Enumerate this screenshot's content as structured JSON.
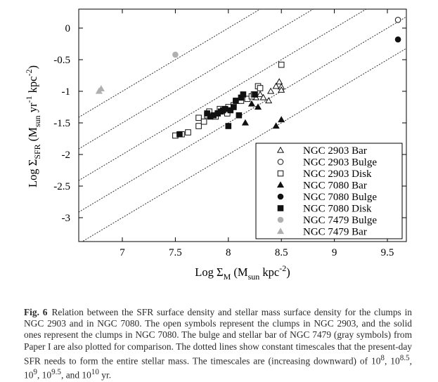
{
  "chart_data": {
    "type": "scatter",
    "xlabel": "Log Σ_M (M_sun kpc^-2)",
    "ylabel": "Log Σ_SFR (M_sun yr^-1 kpc^-2)",
    "xlim": [
      6.55,
      9.7
    ],
    "ylim": [
      -3.4,
      0.3
    ],
    "x_ticks": [
      7,
      7.5,
      8,
      8.5,
      9,
      9.5
    ],
    "x_tick_labels": [
      "7",
      "7.5",
      "8",
      "8.5",
      "9",
      "9.5"
    ],
    "y_ticks": [
      0,
      -0.5,
      -1,
      -1.5,
      -2,
      -2.5,
      -3
    ],
    "y_tick_labels": [
      "0",
      "-0.5",
      "-1",
      "-1.5",
      "-2",
      "-2.5",
      "-3"
    ],
    "legend_position": "bottom-right",
    "grid": false,
    "reference_lines": {
      "style": "dotted",
      "slope": 1,
      "log_timescales_yr": [
        8,
        8.5,
        9,
        9.5,
        10
      ]
    },
    "series": [
      {
        "name": "NGC 2903 Bar",
        "marker": "triangle",
        "filled": false,
        "color": "#111111",
        "points": [
          [
            8.26,
            -1.1
          ],
          [
            8.3,
            -1.05
          ],
          [
            8.33,
            -1.1
          ],
          [
            8.38,
            -1.15
          ],
          [
            8.4,
            -1.0
          ],
          [
            8.45,
            -0.92
          ],
          [
            8.48,
            -0.85
          ],
          [
            8.5,
            -0.93
          ],
          [
            8.5,
            -0.98
          ]
        ]
      },
      {
        "name": "NGC 2903 Bulge",
        "marker": "circle",
        "filled": false,
        "color": "#111111",
        "points": [
          [
            9.6,
            0.13
          ]
        ]
      },
      {
        "name": "NGC 2903 Disk",
        "marker": "square",
        "filled": false,
        "color": "#111111",
        "points": [
          [
            7.5,
            -1.7
          ],
          [
            7.56,
            -1.68
          ],
          [
            7.62,
            -1.65
          ],
          [
            7.72,
            -1.55
          ],
          [
            7.72,
            -1.42
          ],
          [
            7.77,
            -1.48
          ],
          [
            7.8,
            -1.38
          ],
          [
            7.82,
            -1.32
          ],
          [
            7.88,
            -1.4
          ],
          [
            7.9,
            -1.35
          ],
          [
            7.92,
            -1.28
          ],
          [
            7.96,
            -1.3
          ],
          [
            7.99,
            -1.35
          ],
          [
            8.0,
            -1.25
          ],
          [
            8.05,
            -1.22
          ],
          [
            8.08,
            -1.15
          ],
          [
            8.12,
            -1.15
          ],
          [
            8.18,
            -1.12
          ],
          [
            8.22,
            -1.08
          ],
          [
            8.24,
            -1.05
          ],
          [
            8.28,
            -0.92
          ],
          [
            8.3,
            -0.95
          ],
          [
            8.5,
            -0.58
          ]
        ]
      },
      {
        "name": "NGC 7080 Bar",
        "marker": "triangle",
        "filled": true,
        "color": "#111111",
        "points": [
          [
            8.16,
            -1.5
          ],
          [
            8.22,
            -1.2
          ],
          [
            8.28,
            -1.25
          ],
          [
            8.45,
            -1.55
          ],
          [
            8.5,
            -1.45
          ]
        ]
      },
      {
        "name": "NGC 7080 Bulge",
        "marker": "circle",
        "filled": true,
        "color": "#111111",
        "points": [
          [
            9.6,
            -0.18
          ]
        ]
      },
      {
        "name": "NGC 7080 Disk",
        "marker": "square",
        "filled": true,
        "color": "#111111",
        "points": [
          [
            7.54,
            -1.68
          ],
          [
            7.8,
            -1.35
          ],
          [
            7.83,
            -1.4
          ],
          [
            7.86,
            -1.38
          ],
          [
            7.9,
            -1.35
          ],
          [
            7.93,
            -1.32
          ],
          [
            7.95,
            -1.3
          ],
          [
            7.97,
            -1.28
          ],
          [
            8.0,
            -1.55
          ],
          [
            8.02,
            -1.3
          ],
          [
            8.05,
            -1.25
          ],
          [
            8.07,
            -1.15
          ],
          [
            8.1,
            -1.38
          ],
          [
            8.12,
            -1.1
          ],
          [
            8.14,
            -1.05
          ],
          [
            8.25,
            -1.05
          ]
        ]
      },
      {
        "name": "NGC 7479 Bulge",
        "marker": "circle",
        "filled": true,
        "color": "#b0b0b0",
        "points": [
          [
            7.5,
            -0.42
          ]
        ]
      },
      {
        "name": "NGC 7479 Bar",
        "marker": "triangle",
        "filled": true,
        "color": "#b0b0b0",
        "points": [
          [
            6.78,
            -1.0
          ],
          [
            6.8,
            -0.96
          ]
        ]
      }
    ]
  },
  "legend": {
    "entries": [
      "NGC 2903 Bar",
      "NGC 2903 Bulge",
      "NGC 2903 Disk",
      "NGC 7080 Bar",
      "NGC 7080 Bulge",
      "NGC 7080 Disk",
      "NGC 7479 Bulge",
      "NGC 7479 Bar"
    ]
  },
  "axis_label_parts": {
    "x_main": "Log Σ",
    "x_sub": "M",
    "x_units_open": " (M",
    "x_units_sub": "sun",
    "x_units_mid": " kpc",
    "x_units_sup": "-2",
    "x_units_close": ")",
    "y_main": "Log Σ",
    "y_sub": "SFR",
    "y_units_open": " (M",
    "y_units_sub": "sun",
    "y_units_mid1": " yr",
    "y_units_sup1": "-1",
    "y_units_mid2": " kpc",
    "y_units_sup2": "-2",
    "y_units_close": ")"
  },
  "caption": {
    "label": "Fig. 6",
    "text_1": "Relation between the SFR surface density and stellar mass surface density for the clumps in NGC 2903 and in NGC 7080. The open symbols represent the clumps in NGC 2903, and the solid ones represent the clumps in NGC 7080. The bulge and stellar bar of NGC 7479 (gray symbols) from Paper I are also plotted for comparison. The dotted lines show constant timescales that the present-day SFR needs to form the entire stellar mass. The timescales are (increasing downward) of 10",
    "sup_1": "8",
    "sep_1": ", 10",
    "sup_2": "8.5",
    "sep_2": ", 10",
    "sup_3": "9",
    "sep_3": ", 10",
    "sup_4": "9.5",
    "sep_4": ", and 10",
    "sup_5": "10",
    "text_end": " yr."
  }
}
